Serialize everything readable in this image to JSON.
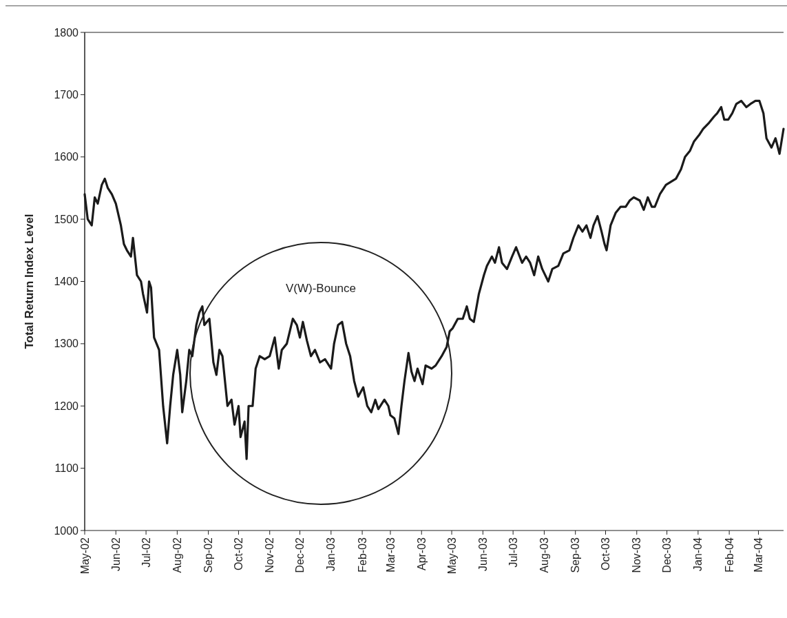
{
  "chart_data": {
    "type": "line",
    "ylabel": "Total Return Index Level",
    "x": [
      "2002-05-01",
      "2002-05-04",
      "2002-05-08",
      "2002-05-11",
      "2002-05-14",
      "2002-05-18",
      "2002-05-21",
      "2002-05-24",
      "2002-05-28",
      "2002-06-01",
      "2002-06-06",
      "2002-06-09",
      "2002-06-12",
      "2002-06-16",
      "2002-06-18",
      "2002-06-22",
      "2002-06-26",
      "2002-06-28",
      "2002-07-02",
      "2002-07-04",
      "2002-07-06",
      "2002-07-09",
      "2002-07-14",
      "2002-07-18",
      "2002-07-22",
      "2002-07-25",
      "2002-07-28",
      "2002-08-01",
      "2002-08-04",
      "2002-08-06",
      "2002-08-10",
      "2002-08-13",
      "2002-08-16",
      "2002-08-20",
      "2002-08-23",
      "2002-08-26",
      "2002-08-28",
      "2002-09-02",
      "2002-09-06",
      "2002-09-09",
      "2002-09-12",
      "2002-09-15",
      "2002-09-20",
      "2002-09-24",
      "2002-09-27",
      "2002-10-01",
      "2002-10-03",
      "2002-10-07",
      "2002-10-09",
      "2002-10-11",
      "2002-10-15",
      "2002-10-18",
      "2002-10-22",
      "2002-10-27",
      "2002-11-01",
      "2002-11-06",
      "2002-11-10",
      "2002-11-13",
      "2002-11-18",
      "2002-11-24",
      "2002-11-28",
      "2002-12-01",
      "2002-12-04",
      "2002-12-08",
      "2002-12-12",
      "2002-12-16",
      "2002-12-21",
      "2002-12-26",
      "2003-01-01",
      "2003-01-04",
      "2003-01-08",
      "2003-01-12",
      "2003-01-16",
      "2003-01-20",
      "2003-01-24",
      "2003-01-28",
      "2003-02-02",
      "2003-02-06",
      "2003-02-10",
      "2003-02-14",
      "2003-02-17",
      "2003-02-23",
      "2003-02-27",
      "2003-03-01",
      "2003-03-05",
      "2003-03-09",
      "2003-03-12",
      "2003-03-15",
      "2003-03-19",
      "2003-03-22",
      "2003-03-25",
      "2003-03-28",
      "2003-04-02",
      "2003-04-05",
      "2003-04-11",
      "2003-04-15",
      "2003-04-21",
      "2003-04-26",
      "2003-04-29",
      "2003-05-02",
      "2003-05-07",
      "2003-05-12",
      "2003-05-16",
      "2003-05-19",
      "2003-05-23",
      "2003-05-28",
      "2003-06-02",
      "2003-06-05",
      "2003-06-10",
      "2003-06-13",
      "2003-06-17",
      "2003-06-20",
      "2003-06-25",
      "2003-06-30",
      "2003-07-04",
      "2003-07-10",
      "2003-07-14",
      "2003-07-18",
      "2003-07-22",
      "2003-07-26",
      "2003-07-30",
      "2003-08-05",
      "2003-08-09",
      "2003-08-15",
      "2003-08-20",
      "2003-08-26",
      "2003-08-30",
      "2003-09-04",
      "2003-09-08",
      "2003-09-12",
      "2003-09-16",
      "2003-09-19",
      "2003-09-23",
      "2003-09-27",
      "2003-09-30",
      "2003-10-02",
      "2003-10-06",
      "2003-10-11",
      "2003-10-16",
      "2003-10-21",
      "2003-10-25",
      "2003-10-29",
      "2003-11-04",
      "2003-11-08",
      "2003-11-12",
      "2003-11-16",
      "2003-11-19",
      "2003-11-24",
      "2003-11-30",
      "2003-12-05",
      "2003-12-10",
      "2003-12-15",
      "2003-12-19",
      "2003-12-24",
      "2003-12-28",
      "2004-01-02",
      "2004-01-06",
      "2004-01-12",
      "2004-01-17",
      "2004-01-20",
      "2004-01-24",
      "2004-01-27",
      "2004-01-31",
      "2004-02-04",
      "2004-02-08",
      "2004-02-13",
      "2004-02-18",
      "2004-02-22",
      "2004-02-27",
      "2004-03-02",
      "2004-03-06",
      "2004-03-09",
      "2004-03-14",
      "2004-03-18",
      "2004-03-22",
      "2004-03-26"
    ],
    "series": [
      {
        "color": "#1a1a1a",
        "values": [
          1540,
          1500,
          1490,
          1535,
          1525,
          1555,
          1565,
          1550,
          1540,
          1525,
          1490,
          1460,
          1450,
          1440,
          1470,
          1410,
          1400,
          1380,
          1350,
          1400,
          1390,
          1310,
          1290,
          1200,
          1140,
          1200,
          1250,
          1290,
          1250,
          1190,
          1240,
          1290,
          1280,
          1330,
          1350,
          1360,
          1330,
          1340,
          1270,
          1250,
          1290,
          1280,
          1200,
          1210,
          1170,
          1200,
          1150,
          1175,
          1115,
          1200,
          1200,
          1260,
          1280,
          1275,
          1280,
          1310,
          1260,
          1290,
          1300,
          1340,
          1330,
          1310,
          1335,
          1305,
          1280,
          1290,
          1270,
          1275,
          1260,
          1300,
          1330,
          1335,
          1300,
          1280,
          1240,
          1215,
          1230,
          1200,
          1190,
          1210,
          1195,
          1210,
          1200,
          1185,
          1180,
          1155,
          1200,
          1240,
          1285,
          1255,
          1240,
          1260,
          1235,
          1265,
          1260,
          1265,
          1280,
          1295,
          1320,
          1325,
          1340,
          1340,
          1360,
          1340,
          1335,
          1380,
          1410,
          1425,
          1440,
          1430,
          1455,
          1430,
          1420,
          1440,
          1455,
          1430,
          1440,
          1430,
          1410,
          1440,
          1420,
          1400,
          1420,
          1425,
          1445,
          1450,
          1470,
          1490,
          1480,
          1490,
          1470,
          1490,
          1505,
          1480,
          1460,
          1450,
          1490,
          1510,
          1520,
          1520,
          1530,
          1535,
          1530,
          1515,
          1535,
          1520,
          1520,
          1540,
          1555,
          1560,
          1565,
          1580,
          1600,
          1610,
          1625,
          1635,
          1645,
          1655,
          1665,
          1670,
          1680,
          1660,
          1660,
          1670,
          1685,
          1690,
          1680,
          1685,
          1690,
          1690,
          1670,
          1630,
          1615,
          1630,
          1605,
          1645
        ]
      }
    ],
    "xlim": [
      "2002-05-01",
      "2004-03-26"
    ],
    "xticks": [
      {
        "value": "2002-05-01",
        "label": "May-02"
      },
      {
        "value": "2002-06-01",
        "label": "Jun-02"
      },
      {
        "value": "2002-07-01",
        "label": "Jul-02"
      },
      {
        "value": "2002-08-01",
        "label": "Aug-02"
      },
      {
        "value": "2002-09-01",
        "label": "Sep-02"
      },
      {
        "value": "2002-10-01",
        "label": "Oct-02"
      },
      {
        "value": "2002-11-01",
        "label": "Nov-02"
      },
      {
        "value": "2002-12-01",
        "label": "Dec-02"
      },
      {
        "value": "2003-01-01",
        "label": "Jan-03"
      },
      {
        "value": "2003-02-01",
        "label": "Feb-03"
      },
      {
        "value": "2003-03-01",
        "label": "Mar-03"
      },
      {
        "value": "2003-04-01",
        "label": "Apr-03"
      },
      {
        "value": "2003-05-01",
        "label": "May-03"
      },
      {
        "value": "2003-06-01",
        "label": "Jun-03"
      },
      {
        "value": "2003-07-01",
        "label": "Jul-03"
      },
      {
        "value": "2003-08-01",
        "label": "Aug-03"
      },
      {
        "value": "2003-09-01",
        "label": "Sep-03"
      },
      {
        "value": "2003-10-01",
        "label": "Oct-03"
      },
      {
        "value": "2003-11-01",
        "label": "Nov-03"
      },
      {
        "value": "2003-12-01",
        "label": "Dec-03"
      },
      {
        "value": "2004-01-01",
        "label": "Jan-04"
      },
      {
        "value": "2004-02-01",
        "label": "Feb-04"
      },
      {
        "value": "2004-03-01",
        "label": "Mar-04"
      }
    ],
    "ylim": [
      1000,
      1800
    ],
    "yticks": [
      1000,
      1100,
      1200,
      1300,
      1400,
      1500,
      1600,
      1700,
      1800
    ],
    "annotations": [
      "V(W)-Bounce"
    ],
    "grid": false,
    "marker": "none",
    "line_style": "solid"
  }
}
